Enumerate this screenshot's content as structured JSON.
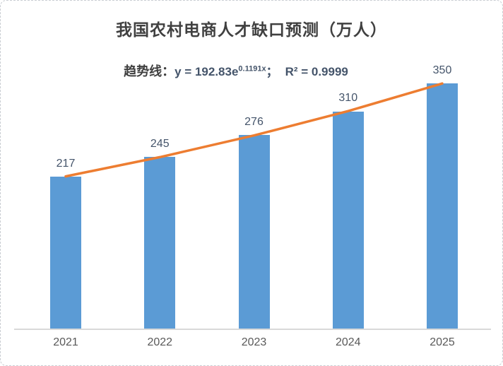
{
  "chart": {
    "title": "我国农村电商人才缺口预测（万人）",
    "trend_label": {
      "prefix": "趋势线：",
      "equation_base": "y = 192.83e",
      "equation_exponent": "0.1191x",
      "separator": "；",
      "r2": "R² = 0.9999"
    }
  },
  "colors": {
    "bar": "#5B9BD5",
    "trendline": "#ED7D31",
    "title_text": "#404040",
    "value_label_text": "#44546A",
    "axis_label_text": "#595959",
    "axis_line": "#D9D9D9"
  },
  "chart_data": {
    "type": "bar",
    "title": "我国农村电商人才缺口预测（万人）",
    "categories": [
      "2021",
      "2022",
      "2023",
      "2024",
      "2025"
    ],
    "values": [
      217,
      245,
      276,
      310,
      350
    ],
    "data_labels": true,
    "xlabel": "",
    "ylabel": "",
    "ylim": [
      0,
      350
    ],
    "gridlines": false,
    "legend": "none",
    "y_axis_visible": false,
    "trendline": {
      "type": "exponential",
      "equation": "y = 192.83e^0.1191x",
      "a": 192.83,
      "b": 0.1191,
      "r_squared": 0.9999
    }
  }
}
